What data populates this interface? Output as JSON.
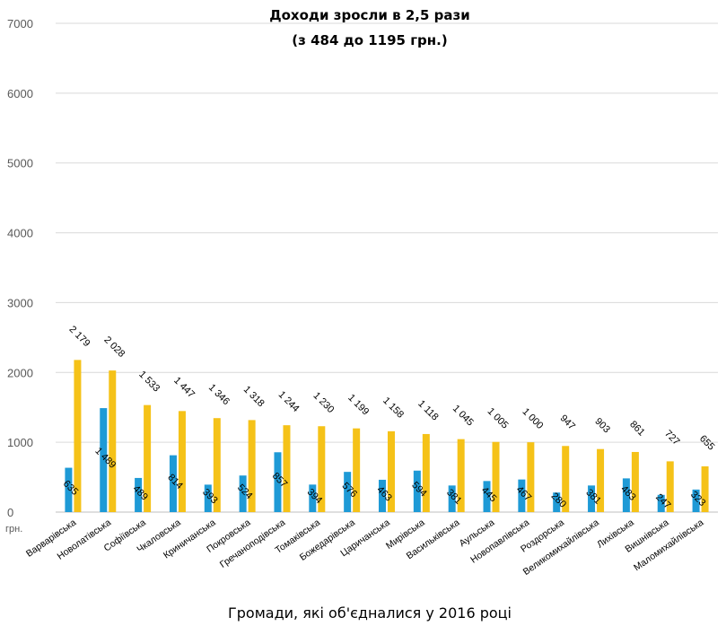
{
  "chart_data": {
    "type": "bar",
    "title": [
      "Доходи зросли в 2,5 рази",
      "(з 484 до 1195 грн.)"
    ],
    "xlabel": "Громади, які об'єдналися у 2016 році",
    "unit_label": "грн.",
    "ylim": [
      0,
      7000
    ],
    "yticks": [
      0,
      1000,
      2000,
      3000,
      4000,
      5000,
      6000,
      7000
    ],
    "grid": true,
    "categories": [
      "Варварівська",
      "Новолатівська",
      "Софіївська",
      "Чкаловська",
      "Криничанська",
      "Покровська",
      "Гречаноподівська",
      "Томаківська",
      "Божедарівська",
      "Царичанська",
      "Мирівська",
      "Васильківська",
      "Аульська",
      "Новопавлівська",
      "Роздорська",
      "Великомихайлівська",
      "Лихівська",
      "Вишнівська",
      "Маломихайлівська"
    ],
    "series": [
      {
        "color": "#1e9ad6",
        "values": [
          635,
          1489,
          489,
          814,
          393,
          524,
          857,
          394,
          576,
          463,
          594,
          381,
          445,
          467,
          280,
          381,
          483,
          247,
          323
        ],
        "labels": [
          "635",
          "1 489",
          "489",
          "814",
          "393",
          "524",
          "857",
          "394",
          "576",
          "463",
          "594",
          "381",
          "445",
          "467",
          "280",
          "381",
          "483",
          "247",
          "323"
        ]
      },
      {
        "color": "#f5c218",
        "values": [
          2179,
          2028,
          1533,
          1447,
          1346,
          1318,
          1244,
          1230,
          1199,
          1158,
          1118,
          1045,
          1005,
          1000,
          947,
          903,
          861,
          727,
          655
        ],
        "labels": [
          "2 179",
          "2 028",
          "1 533",
          "1 447",
          "1 346",
          "1 318",
          "1 244",
          "1 230",
          "1 199",
          "1 158",
          "1 118",
          "1 045",
          "1 005",
          "1 000",
          "947",
          "903",
          "861",
          "727",
          "655"
        ]
      }
    ]
  }
}
